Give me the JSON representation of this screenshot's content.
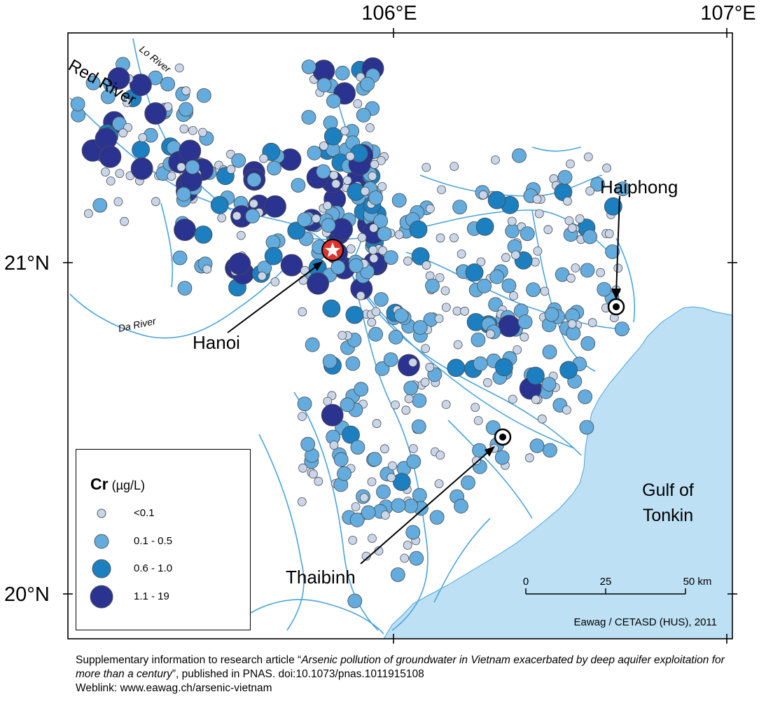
{
  "axes": {
    "lon_ticks": [
      "106°E",
      "107°E"
    ],
    "lat_ticks": [
      "21°N",
      "20°N"
    ]
  },
  "labels": {
    "red_river": "Red River",
    "lo_river": "Lo River",
    "da_river": "Da River",
    "hanoi": "Hanoi",
    "haiphong": "Haiphong",
    "thaibinh": "Thaibinh",
    "gulf_line1": "Gulf of",
    "gulf_line2": "Tonkin",
    "credit": "Eawag / CETASD (HUS), 2011"
  },
  "scale_bar": {
    "ticks": [
      "0",
      "25",
      "50 km"
    ]
  },
  "legend": {
    "element": "Cr",
    "unit": "(µg/L)",
    "classes": [
      {
        "label": "<0.1",
        "color": "#c9d6ea"
      },
      {
        "label": "0.1 - 0.5",
        "color": "#63acdd"
      },
      {
        "label": "0.6 - 1.0",
        "color": "#1b7fc0"
      },
      {
        "label": "1.1 - 19",
        "color": "#2a3390"
      }
    ]
  },
  "caption": {
    "pre": "Supplementary information to research article “",
    "title": "Arsenic pollution of groundwater in Vietnam exacerbated by deep aquifer exploitation for more than a century",
    "post": "”, published in PNAS. doi:10.1073/pnas.1011915108",
    "weblink": "Weblink: www.eawag.ch/arsenic-vietnam"
  },
  "colors": {
    "sea": "#bde0f4",
    "river": "#4aa3dc",
    "hanoi_marker": "#e0332c"
  }
}
